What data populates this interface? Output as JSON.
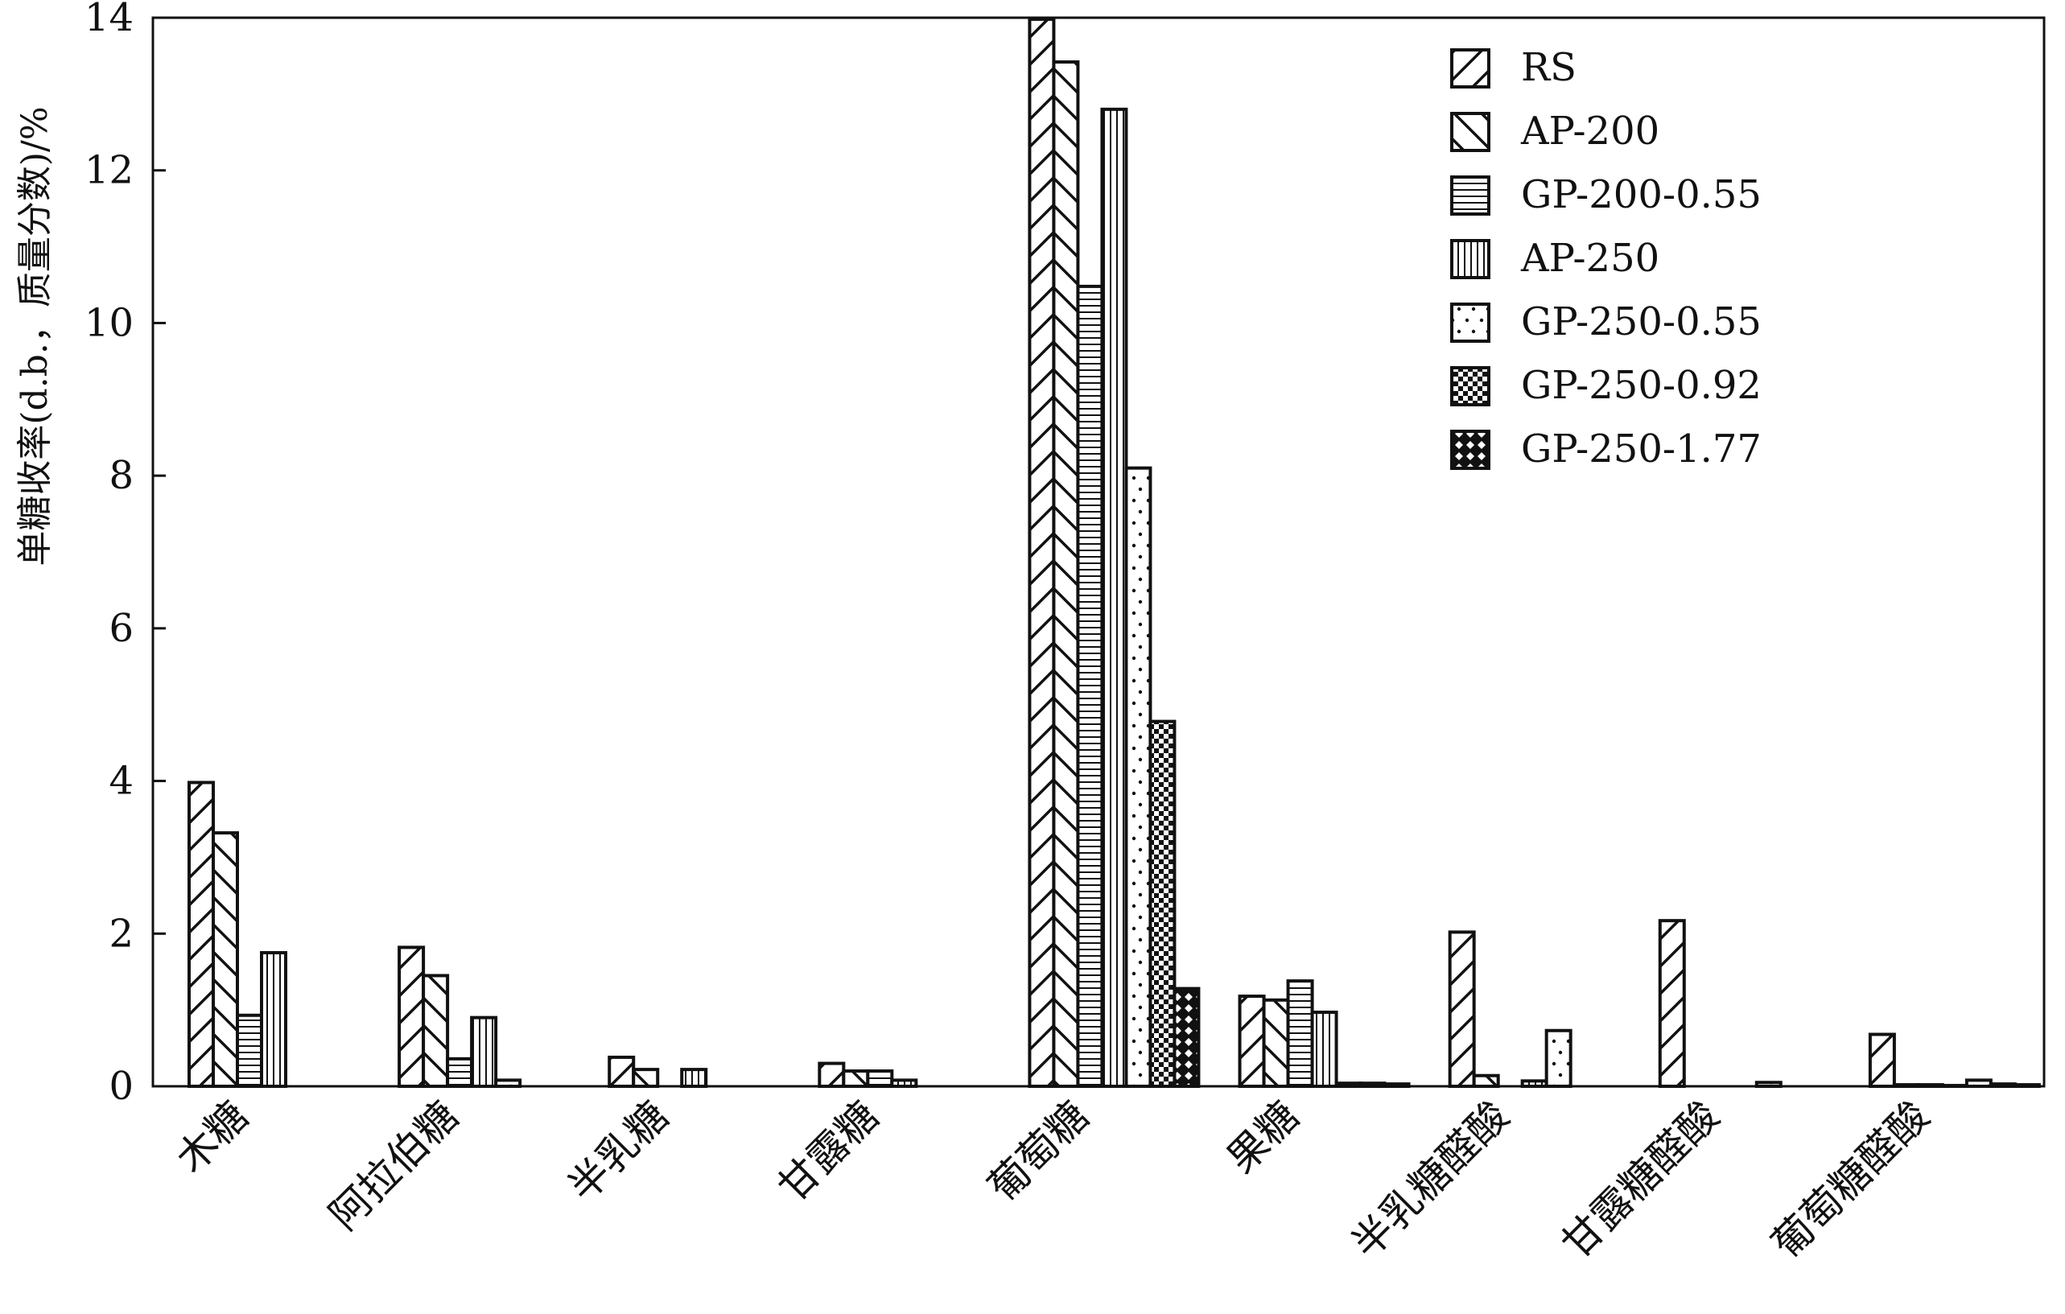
{
  "chart_data": {
    "type": "bar",
    "ylabel": "单糖收率(d.b.，质量分数)/%",
    "ylim": [
      0,
      14
    ],
    "yticks": [
      0,
      2,
      4,
      6,
      8,
      10,
      12,
      14
    ],
    "legend_position": "top-right",
    "grid": false,
    "categories": [
      "木糖",
      "阿拉伯糖",
      "半乳糖",
      "甘露糖",
      "葡萄糖",
      "果糖",
      "半乳糖醛酸",
      "甘露糖醛酸",
      "葡萄糖醛酸"
    ],
    "series": [
      {
        "name": "RS",
        "pattern": "diag-fwd",
        "values": [
          3.98,
          1.82,
          0.38,
          0.3,
          13.98,
          1.18,
          2.02,
          2.17,
          0.68
        ]
      },
      {
        "name": "AP-200",
        "pattern": "diag-back",
        "values": [
          3.32,
          1.45,
          0.22,
          0.2,
          13.42,
          1.13,
          0.14,
          0.0,
          0.02
        ]
      },
      {
        "name": "GP-200-0.55",
        "pattern": "horizontal",
        "values": [
          0.93,
          0.36,
          0.0,
          0.2,
          10.48,
          1.38,
          0.0,
          0.0,
          0.02
        ]
      },
      {
        "name": "AP-250",
        "pattern": "vertical",
        "values": [
          1.75,
          0.9,
          0.22,
          0.08,
          12.8,
          0.97,
          0.07,
          0.0,
          0.01
        ]
      },
      {
        "name": "GP-250-0.55",
        "pattern": "dots",
        "values": [
          0.0,
          0.08,
          0.0,
          0.0,
          8.1,
          0.04,
          0.73,
          0.05,
          0.08
        ]
      },
      {
        "name": "GP-250-0.92",
        "pattern": "checker",
        "values": [
          0.0,
          0.0,
          0.0,
          0.0,
          4.78,
          0.04,
          0.0,
          0.0,
          0.03
        ]
      },
      {
        "name": "GP-250-1.77",
        "pattern": "diamond",
        "values": [
          0.0,
          0.0,
          0.0,
          0.0,
          1.28,
          0.03,
          0.0,
          0.0,
          0.02
        ]
      }
    ]
  }
}
